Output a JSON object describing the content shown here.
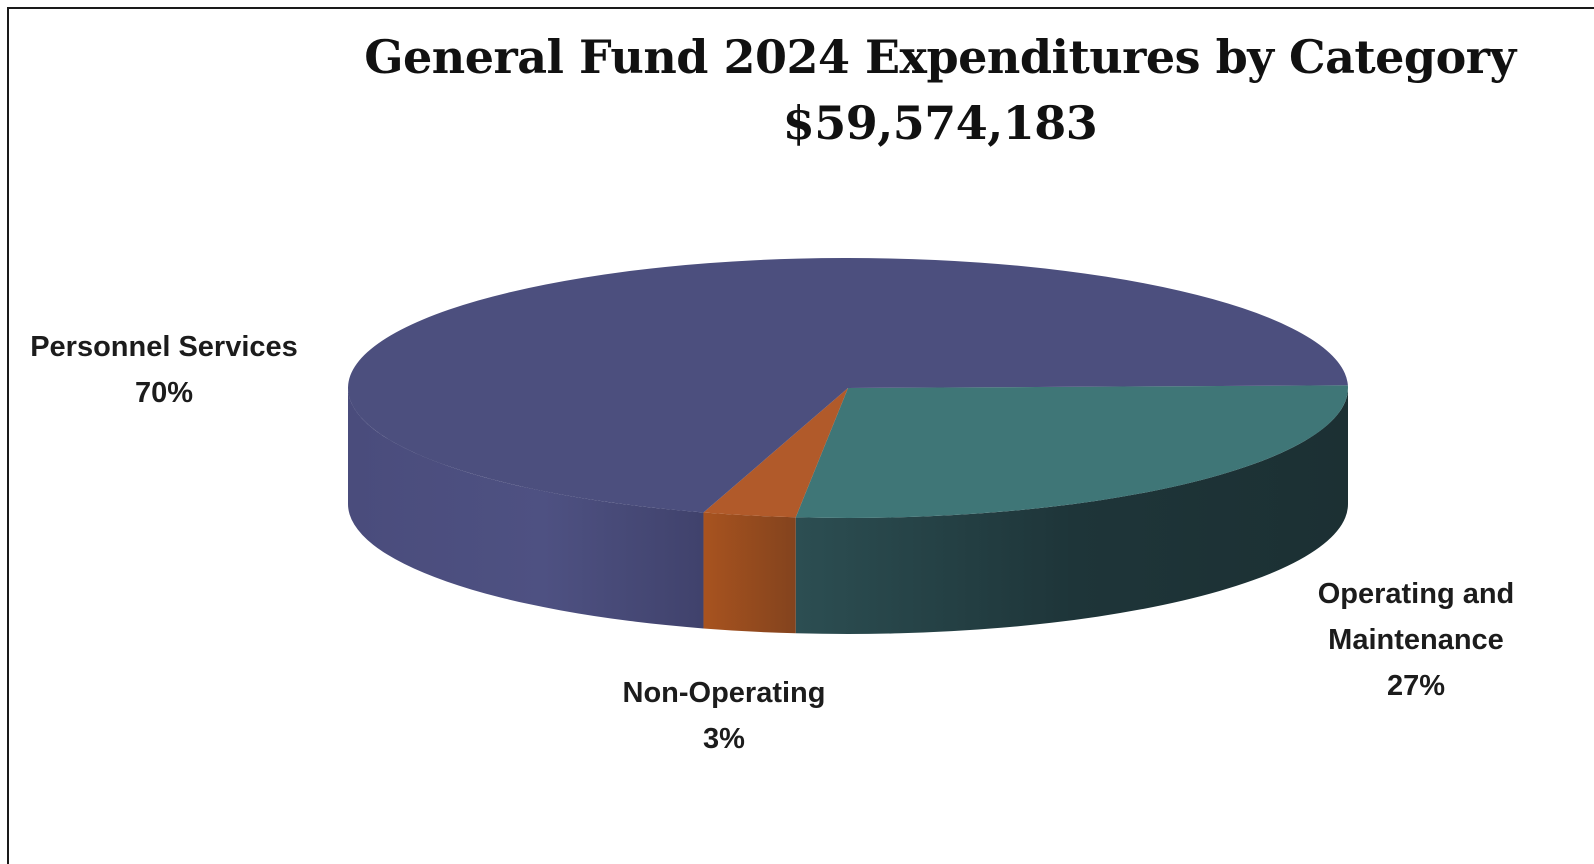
{
  "chart_data": {
    "type": "pie",
    "title": "General Fund 2024 Expenditures by Category",
    "subtitle": "$59,574,183",
    "slices": [
      {
        "label": "Personnel Services",
        "value": 70,
        "value_label": "70%",
        "color": "#4c4f7e",
        "shade": "#43466f"
      },
      {
        "label": "Operating and Maintenance",
        "label_lines": [
          "Operating and",
          "Maintenance"
        ],
        "value": 27,
        "value_label": "27%",
        "color": "#3f7677",
        "shade": "#1f3538"
      },
      {
        "label": "Non-Operating",
        "value": 3,
        "value_label": "3%",
        "color": "#b15a2a",
        "shade": "#8b4520"
      }
    ]
  }
}
